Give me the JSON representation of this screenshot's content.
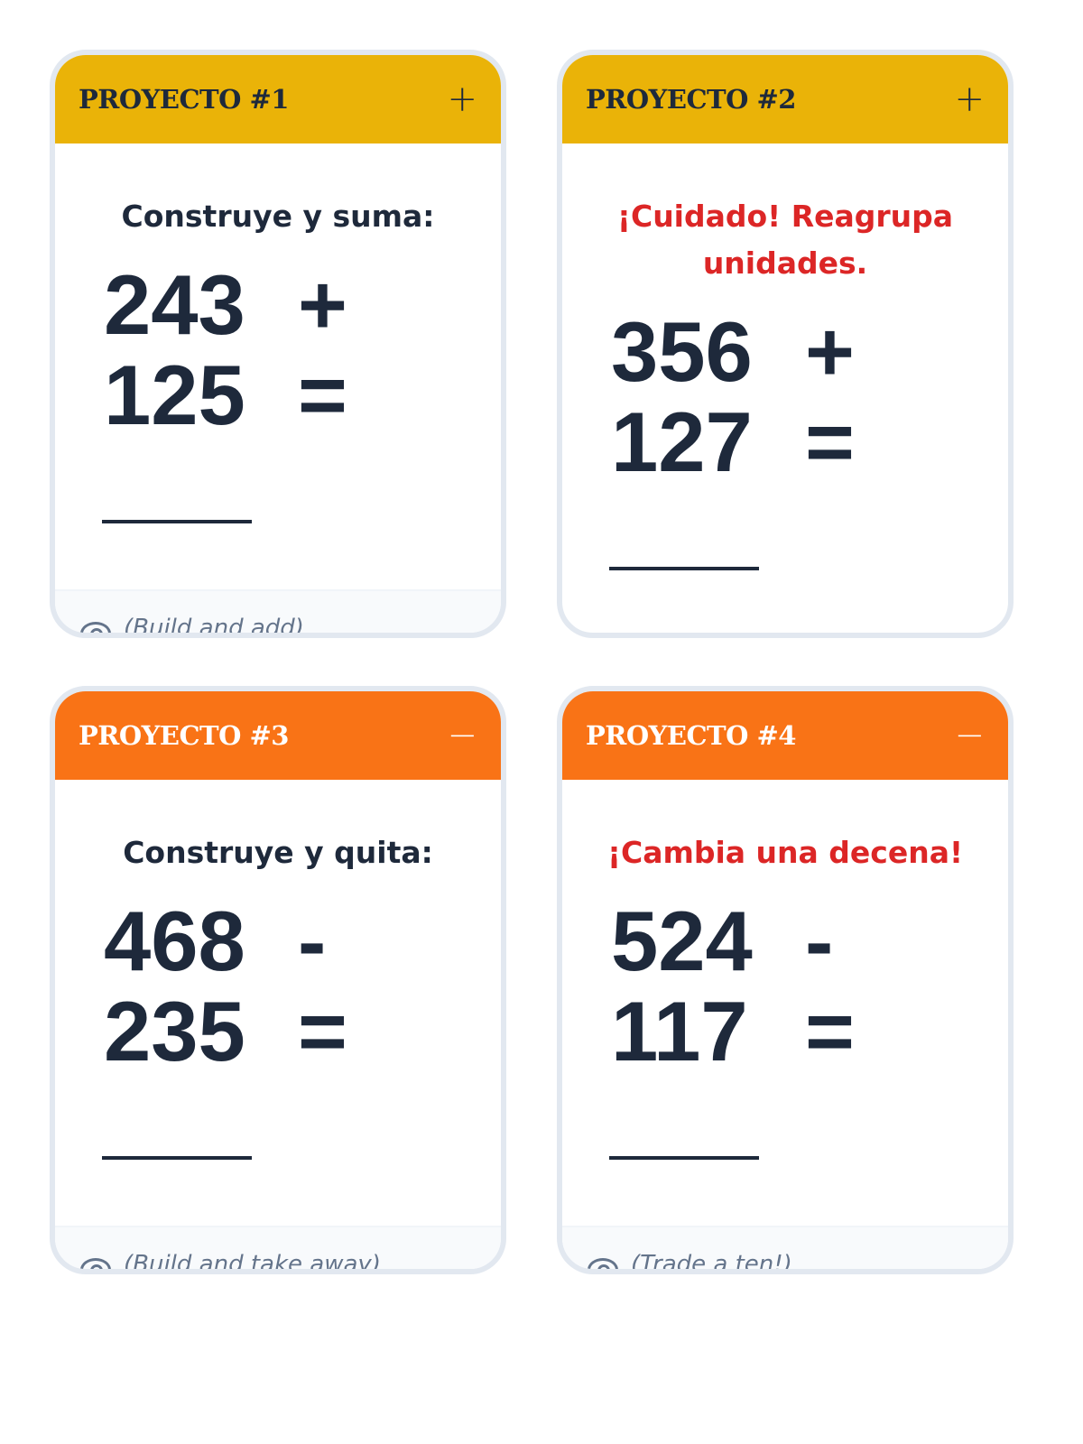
{
  "colors": {
    "add_header": "#eab308",
    "subtract_header": "#f97316",
    "warning_text": "#dc2626",
    "text": "#1e293b",
    "border": "#e2e8f0"
  },
  "cards": [
    {
      "title": "PROYECTO #1",
      "toggle": "+",
      "toggle_icon": "plus-icon",
      "instruction": "Construye y suma:",
      "a": "243",
      "op": "+",
      "b": "125",
      "eq": "=",
      "hint": "(Build and add)"
    },
    {
      "title": "PROYECTO #2",
      "toggle": "+",
      "toggle_icon": "plus-icon",
      "instruction": "¡Cuidado! Reagrupa unidades.",
      "a": "356",
      "op": "+",
      "b": "127",
      "eq": "="
    },
    {
      "title": "PROYECTO #3",
      "toggle": "−",
      "toggle_icon": "minus-icon",
      "instruction": "Construye y quita:",
      "a": "468",
      "op": "-",
      "b": "235",
      "eq": "=",
      "hint": "(Build and take away)"
    },
    {
      "title": "PROYECTO #4",
      "toggle": "−",
      "toggle_icon": "minus-icon",
      "instruction": "¡Cambia una decena!",
      "a": "524",
      "op": "-",
      "b": "117",
      "eq": "=",
      "hint": "(Trade a ten!)"
    }
  ]
}
